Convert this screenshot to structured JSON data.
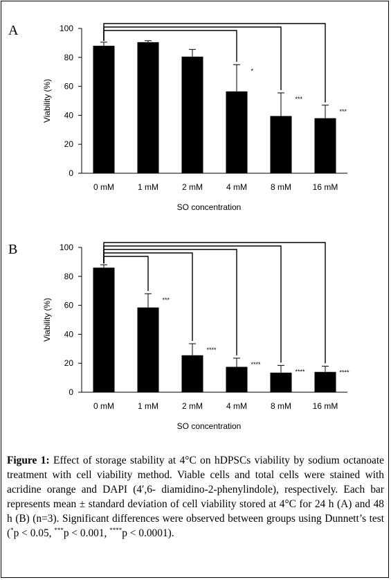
{
  "chart_data": [
    {
      "type": "bar",
      "panel_label": "A",
      "categories": [
        "0 mM",
        "1 mM",
        "2 mM",
        "4 mM",
        "8 mM",
        "16 mM"
      ],
      "values": [
        88,
        90.5,
        80.5,
        56.5,
        39.5,
        38
      ],
      "errors": [
        2.5,
        1,
        5,
        18.5,
        16,
        9
      ],
      "significance": [
        "",
        "",
        "",
        "*",
        "***",
        "***"
      ],
      "xlabel": "SO concentration",
      "ylabel": "Viability (%)",
      "ylim": [
        0,
        100
      ],
      "yticks": [
        0,
        20,
        40,
        60,
        80,
        100
      ],
      "bar_color": "#000000",
      "grid": false
    },
    {
      "type": "bar",
      "panel_label": "B",
      "categories": [
        "0 mM",
        "1 mM",
        "2 mM",
        "4 mM",
        "8 mM",
        "16 mM"
      ],
      "values": [
        86,
        58.5,
        25.5,
        17.5,
        13.5,
        14
      ],
      "errors": [
        2,
        9.5,
        8,
        6,
        5,
        4
      ],
      "significance": [
        "",
        "***",
        "****",
        "****",
        "****",
        "****"
      ],
      "xlabel": "SO concentration",
      "ylabel": "Viability (%)",
      "ylim": [
        0,
        100
      ],
      "yticks": [
        0,
        20,
        40,
        60,
        80,
        100
      ],
      "bar_color": "#000000",
      "grid": false
    }
  ],
  "caption": {
    "figure_label": "Figure 1:",
    "text": " Effect of storage stability at 4°C on hDPSCs viability by sodium octanoate treatment with cell viability method. Viable cells and total cells were stained with acridine orange and DAPI (4′,6- diamidino-2-phenylindole), respectively. Each bar represents mean ± standard deviation of cell viability stored at 4°C for 24 h (A) and 48 h (B) (n=3). Significant differences were observed between groups using Dunnett’s test (",
    "sig1": "*",
    "p1": "p < 0.05, ",
    "sig2": "***",
    "p2": "p < 0.001, ",
    "sig3": "****",
    "p3": "p < 0.0001)."
  }
}
